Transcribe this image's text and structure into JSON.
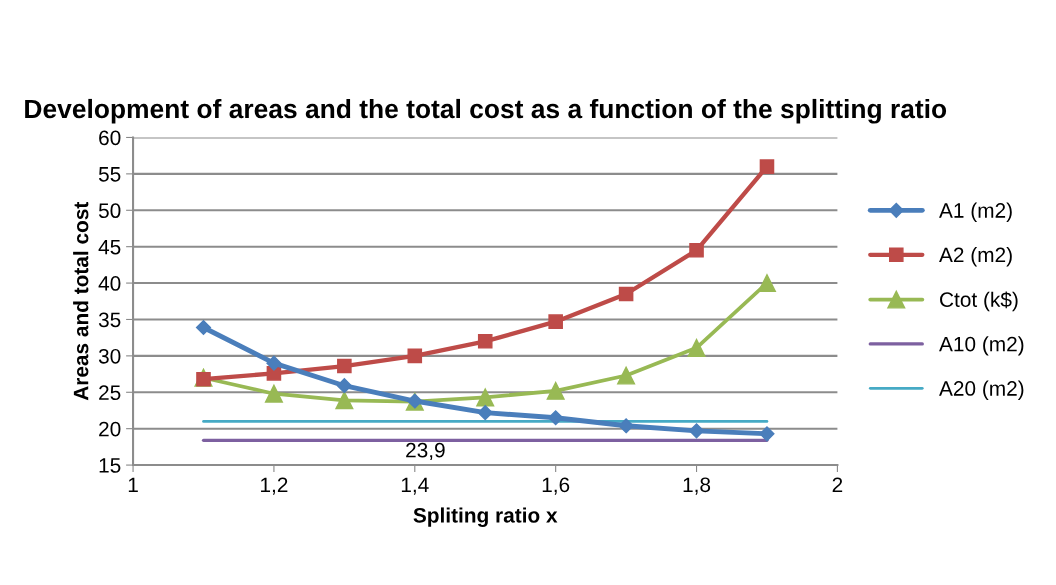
{
  "chart_data": {
    "type": "line",
    "title": "Development of areas and the total cost as a function of the splitting ratio",
    "xlabel": "Spliting ratio x",
    "ylabel": "Areas and total cost",
    "x": [
      1.1,
      1.2,
      1.3,
      1.4,
      1.5,
      1.6,
      1.7,
      1.8,
      1.9
    ],
    "series": [
      {
        "name": "A1 (m2)",
        "color": "#4a7ebb",
        "marker": "diamond",
        "values": [
          33.9,
          29.0,
          25.9,
          23.8,
          22.2,
          21.5,
          20.4,
          19.7,
          19.3
        ]
      },
      {
        "name": "A2 (m2)",
        "color": "#be4b48",
        "marker": "square",
        "values": [
          26.8,
          27.6,
          28.6,
          30.0,
          32.0,
          34.7,
          38.5,
          44.5,
          56.0
        ]
      },
      {
        "name": "Ctot (k$)",
        "color": "#98b954",
        "marker": "triangle",
        "values": [
          27.0,
          24.8,
          23.9,
          23.7,
          24.3,
          25.2,
          27.3,
          31.1,
          40.0
        ]
      },
      {
        "name": "A10 (m2)",
        "color": "#7d60a0",
        "marker": "none",
        "values": [
          18.4,
          18.4,
          18.4,
          18.4,
          18.4,
          18.4,
          18.4,
          18.4,
          18.4
        ]
      },
      {
        "name": "A20 (m2)",
        "color": "#46aac5",
        "marker": "none",
        "values": [
          21,
          21,
          21,
          21,
          21,
          21,
          21,
          21,
          21
        ]
      }
    ],
    "xlim": [
      1,
      2
    ],
    "xticks": [
      1,
      {
        "value": 1.2,
        "label": "1,2"
      },
      {
        "value": 1.4,
        "label": "1,4"
      },
      {
        "value": 1.6,
        "label": "1,6"
      },
      {
        "value": 1.8,
        "label": "1,8"
      },
      2
    ],
    "ylim": [
      15,
      60
    ],
    "yticks": [
      15,
      20,
      25,
      30,
      35,
      40,
      45,
      50,
      55,
      60
    ],
    "annotations": [
      "23,9"
    ],
    "grid": "y",
    "legend": "right",
    "line_style": "solid"
  }
}
